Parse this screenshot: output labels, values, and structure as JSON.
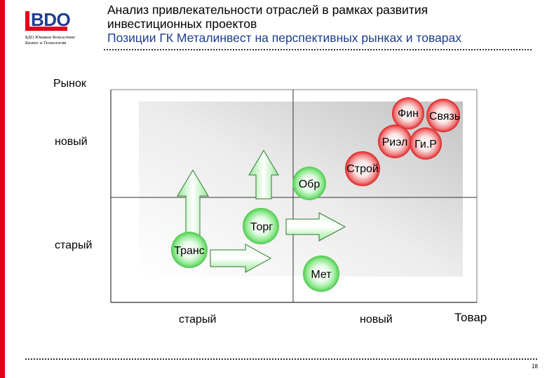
{
  "header": {
    "logo_text": "BDO",
    "logo_sub_line1": "БДО Юникон Консалтинг",
    "logo_sub_line2": "Бизнес и Технологии",
    "title_line1": "Анализ привлекательности отраслей в рамках развития",
    "title_line2": "инвестиционных проектов",
    "subtitle": "Позиции ГК Металинвест на перспективных рынках и товарах"
  },
  "matrix": {
    "y_axis_title": "Рынок",
    "x_axis_title": "Товар",
    "y_tick_new": "новый",
    "y_tick_old": "старый",
    "x_tick_old": "старый",
    "x_tick_new": "новый",
    "bubbles_green": [
      {
        "label": "Обр"
      },
      {
        "label": "Торг"
      },
      {
        "label": "Транс"
      },
      {
        "label": "Мет"
      }
    ],
    "bubbles_red": [
      {
        "label": "Фин"
      },
      {
        "label": "Связь"
      },
      {
        "label": "Риэл"
      },
      {
        "label": "Ги.Р"
      },
      {
        "label": "Строй"
      }
    ],
    "colors": {
      "green": "#5fd35f",
      "red": "#e53030",
      "arrow": "#66dd66",
      "accent": "#e3001b",
      "brand_blue": "#1c3d8f"
    }
  },
  "footer": {
    "page_number": "18"
  }
}
